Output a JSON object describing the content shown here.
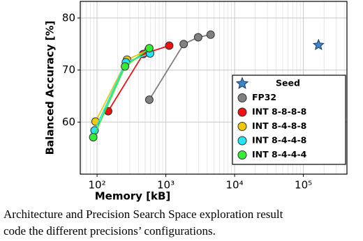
{
  "chart_data": {
    "type": "scatter-line",
    "xlabel": "Memory [kB]",
    "ylabel": "Balanced Accuracy [%]",
    "xscale": "log",
    "grid": true,
    "legend": "lower right",
    "xlim": [
      57,
      430000
    ],
    "ylim": [
      50,
      83.2
    ],
    "xticks": [
      {
        "value": 100,
        "label": "10²"
      },
      {
        "value": 1000,
        "label": "10³"
      },
      {
        "value": 10000,
        "label": "10⁴"
      },
      {
        "value": 100000,
        "label": "10⁵"
      }
    ],
    "yticks": [
      60,
      70,
      80
    ],
    "series": [
      {
        "name": "Seed",
        "color": "#3a86c8",
        "marker": "star",
        "x": [
          166000
        ],
        "values": [
          74.8
        ]
      },
      {
        "name": "FP32",
        "color": "#808080",
        "marker": "circle",
        "x": [
          575,
          1820,
          2950,
          4480
        ],
        "values": [
          64.3,
          75.0,
          76.3,
          76.8
        ]
      },
      {
        "name": "INT 8-8-8-8",
        "color": "#ee1111",
        "marker": "circle",
        "x": [
          145,
          470,
          1120
        ],
        "values": [
          62.1,
          73.1,
          74.7
        ]
      },
      {
        "name": "INT 8-4-8-8",
        "color": "#f2c80f",
        "marker": "circle",
        "x": [
          95,
          273,
          560
        ],
        "values": [
          60.1,
          72.0,
          73.9
        ]
      },
      {
        "name": "INT 8-4-4-8",
        "color": "#22e5f5",
        "marker": "circle",
        "x": [
          92,
          262,
          590
        ],
        "values": [
          58.4,
          71.5,
          73.2
        ]
      },
      {
        "name": "INT 8-4-4-4",
        "color": "#33ee33",
        "marker": "circle",
        "x": [
          88,
          255,
          575
        ],
        "values": [
          57.1,
          70.7,
          74.2
        ]
      }
    ]
  },
  "caption": [
    "Architecture and Precision Search Space exploration result",
    "code the different precisions’ configurations."
  ]
}
